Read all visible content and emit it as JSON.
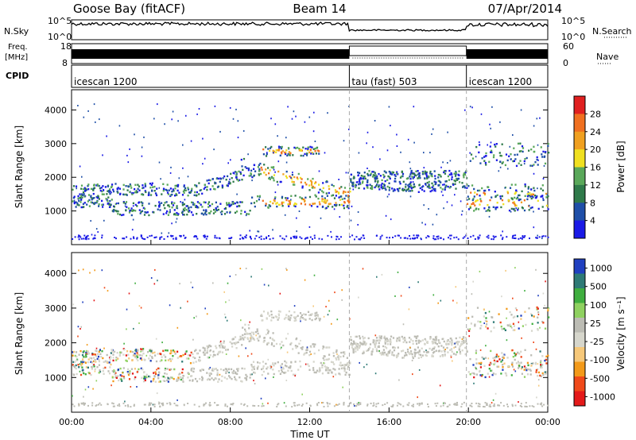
{
  "header": {
    "station": "Goose Bay (fitACF)",
    "beam": "Beam 14",
    "date": "07/Apr/2014"
  },
  "strips": {
    "nsky_label": "N.Sky",
    "nsearch_label": "N.Search",
    "freq_label": "Freq.",
    "freq_unit": "[MHz]",
    "nave_label": "Nave",
    "cpid_label": "CPID",
    "left_top": "10^5",
    "left_bottom": "10^0",
    "right_top": "10^5",
    "right_bottom": "10^0",
    "freq_top": "18",
    "freq_bottom": "8",
    "nave_top": "60",
    "nave_bottom": "0"
  },
  "cpid_segments": [
    {
      "label": "icescan 1200",
      "start_hour": 0
    },
    {
      "label": "tau (fast) 503",
      "start_hour": 14.0
    },
    {
      "label": "icescan 1200",
      "start_hour": 19.9
    }
  ],
  "colors": {
    "power": [
      "#1a1ae6",
      "#1f4fa8",
      "#2f7a4a",
      "#5aa85a",
      "#f0e020",
      "#f0a020",
      "#f07020",
      "#e02020"
    ],
    "velocity": [
      "#e41a1a",
      "#f04a1a",
      "#f39a1a",
      "#f6c87a",
      "#d6d6cc",
      "#bcbcb4",
      "#8fd160",
      "#3fae3f",
      "#2e7a76",
      "#2040c0"
    ]
  },
  "chart_data": [
    {
      "type": "heatmap",
      "title": "",
      "ylabel": "Slant Range [km]",
      "xlabel": "",
      "ylim": [
        0,
        4600
      ],
      "xlim": [
        0,
        24
      ],
      "yticks": [
        "1000",
        "2000",
        "3000",
        "4000"
      ],
      "xticks": [
        "00:00",
        "04:00",
        "08:00",
        "12:00",
        "16:00",
        "20:00",
        "00:00"
      ],
      "colorbar": {
        "label": "Power [dB]",
        "ticks": [
          "4",
          "8",
          "12",
          "16",
          "20",
          "24",
          "28"
        ]
      }
    },
    {
      "type": "heatmap",
      "title": "",
      "ylabel": "Slant Range [km]",
      "xlabel": "Time UT",
      "ylim": [
        0,
        4600
      ],
      "xlim": [
        0,
        24
      ],
      "yticks": [
        "1000",
        "2000",
        "3000",
        "4000"
      ],
      "xticks": [
        "00:00",
        "04:00",
        "08:00",
        "12:00",
        "16:00",
        "20:00",
        "00:00"
      ],
      "colorbar": {
        "label": "Velocity [m s⁻¹]",
        "ticks": [
          "1000",
          "500",
          "100",
          "25",
          "-25",
          "-100",
          "-500",
          "-1000"
        ]
      }
    }
  ]
}
